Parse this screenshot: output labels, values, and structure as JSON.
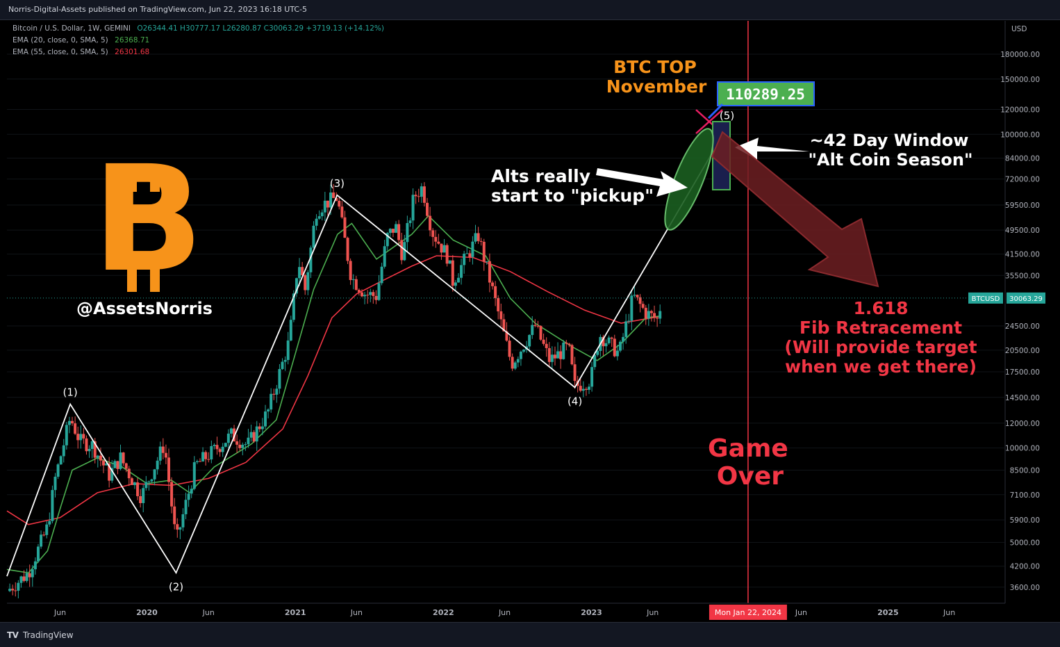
{
  "header": {
    "publisher": "Norris-Digital-Assets published on TradingView.com, Jun 22, 2023 16:18 UTC-5"
  },
  "legend": {
    "symbol": "Bitcoin / U.S. Dollar, 1W, GEMINI",
    "ohlc": "O26344.41  H30777.17  L26280.87  C30063.29  +3719.13 (+14.12%)",
    "ema20_label": "EMA (20, close, 0, SMA, 5)",
    "ema20_value": "26368.71",
    "ema55_label": "EMA (55, close, 0, SMA, 5)",
    "ema55_value": "26301.68"
  },
  "footer": {
    "logo": "TV",
    "brand": "TradingView"
  },
  "colors": {
    "up": "#26a69a",
    "down": "#ef5350",
    "ema20": "#4caf50",
    "ema55": "#f23645",
    "annotation_orange": "#f7931a",
    "annotation_red": "#f23645",
    "target_green": "#4caf50"
  },
  "annotations": {
    "handle": "@AssetsNorris",
    "btc_logo": "B",
    "top_line1": "BTC TOP",
    "top_line2": "November",
    "target_value": "110289.25",
    "window_line1": "~42 Day Window",
    "window_line2": "\"Alt Coin Season\"",
    "alts_line1": "Alts really",
    "alts_line2": "start to \"pickup\"",
    "fib_line1": "1.618",
    "fib_line2": "Fib Retracement",
    "fib_line3": "(Will provide target",
    "fib_line4": "when we get there)",
    "game_line1": "Game",
    "game_line2": "Over",
    "date_marker": "Mon Jan 22, 2024",
    "price_symbol": "BTCUSD",
    "price_value": "30063.29"
  },
  "chart_data": {
    "type": "line",
    "title": "Bitcoin / U.S. Dollar, 1W, GEMINI",
    "y_axis_unit": "USD",
    "y_scale": "log",
    "ylim": [
      3200,
      230000
    ],
    "x_range": [
      "2019-01-21",
      "2025-10-15"
    ],
    "y_ticks": [
      "180000.00",
      "150000.00",
      "120000.00",
      "100000.00",
      "84000.00",
      "72000.00",
      "59500.00",
      "49500.00",
      "41500.00",
      "35500.00",
      "24500.00",
      "20500.00",
      "17500.00",
      "14500.00",
      "12000.00",
      "10000.00",
      "8500.00",
      "7100.00",
      "5900.00",
      "5000.00",
      "4200.00",
      "3600.00"
    ],
    "x_ticks": [
      {
        "label": "Jun",
        "date": "2019-06-01"
      },
      {
        "label": "2020",
        "date": "2020-01-01"
      },
      {
        "label": "Jun",
        "date": "2020-06-01"
      },
      {
        "label": "2021",
        "date": "2021-01-01"
      },
      {
        "label": "Jun",
        "date": "2021-06-01"
      },
      {
        "label": "2022",
        "date": "2022-01-01"
      },
      {
        "label": "Jun",
        "date": "2022-06-01"
      },
      {
        "label": "2023",
        "date": "2023-01-01"
      },
      {
        "label": "Jun",
        "date": "2023-06-01"
      },
      {
        "label": "Jun",
        "date": "2024-06-01"
      },
      {
        "label": "2025",
        "date": "2025-01-01"
      },
      {
        "label": "Jun",
        "date": "2025-06-01"
      }
    ],
    "price_path": [
      [
        "2019-01-21",
        3500
      ],
      [
        "2019-03-15",
        4000
      ],
      [
        "2019-05-01",
        5600
      ],
      [
        "2019-05-20",
        8000
      ],
      [
        "2019-06-26",
        12500
      ],
      [
        "2019-07-20",
        10500
      ],
      [
        "2019-08-20",
        10200
      ],
      [
        "2019-09-30",
        8200
      ],
      [
        "2019-10-28",
        9300
      ],
      [
        "2019-12-18",
        7000
      ],
      [
        "2020-02-13",
        10300
      ],
      [
        "2020-03-13",
        5000
      ],
      [
        "2020-04-30",
        8800
      ],
      [
        "2020-06-10",
        9700
      ],
      [
        "2020-07-27",
        11000
      ],
      [
        "2020-09-05",
        10200
      ],
      [
        "2020-10-25",
        13000
      ],
      [
        "2020-12-17",
        22000
      ],
      [
        "2021-01-08",
        40000
      ],
      [
        "2021-01-25",
        32000
      ],
      [
        "2021-02-21",
        57000
      ],
      [
        "2021-03-13",
        60000
      ],
      [
        "2021-04-14",
        63000
      ],
      [
        "2021-05-19",
        35000
      ],
      [
        "2021-06-22",
        31000
      ],
      [
        "2021-07-20",
        30500
      ],
      [
        "2021-08-15",
        47000
      ],
      [
        "2021-09-05",
        51000
      ],
      [
        "2021-09-22",
        41000
      ],
      [
        "2021-10-20",
        63000
      ],
      [
        "2021-11-10",
        68000
      ],
      [
        "2021-12-04",
        49000
      ],
      [
        "2022-01-10",
        41000
      ],
      [
        "2022-01-24",
        34000
      ],
      [
        "2022-03-28",
        47500
      ],
      [
        "2022-05-10",
        29000
      ],
      [
        "2022-06-18",
        18500
      ],
      [
        "2022-08-15",
        24500
      ],
      [
        "2022-09-20",
        19000
      ],
      [
        "2022-11-05",
        21000
      ],
      [
        "2022-11-21",
        15700
      ],
      [
        "2022-12-30",
        16500
      ],
      [
        "2023-01-21",
        23000
      ],
      [
        "2023-03-10",
        20000
      ],
      [
        "2023-04-14",
        30500
      ],
      [
        "2023-05-15",
        27000
      ],
      [
        "2023-06-15",
        25500
      ],
      [
        "2023-06-22",
        30063
      ]
    ],
    "ema20_path": [
      [
        "2019-01-21",
        4100
      ],
      [
        "2019-03-15",
        4000
      ],
      [
        "2019-05-01",
        4700
      ],
      [
        "2019-06-01",
        6400
      ],
      [
        "2019-07-01",
        8500
      ],
      [
        "2019-09-01",
        9300
      ],
      [
        "2019-11-01",
        8700
      ],
      [
        "2020-01-01",
        7700
      ],
      [
        "2020-03-01",
        7900
      ],
      [
        "2020-04-15",
        7200
      ],
      [
        "2020-06-15",
        8700
      ],
      [
        "2020-09-15",
        10300
      ],
      [
        "2020-11-15",
        12300
      ],
      [
        "2021-01-01",
        20000
      ],
      [
        "2021-02-15",
        32000
      ],
      [
        "2021-04-15",
        48000
      ],
      [
        "2021-05-20",
        52000
      ],
      [
        "2021-07-20",
        40000
      ],
      [
        "2021-10-15",
        48000
      ],
      [
        "2021-11-25",
        55000
      ],
      [
        "2022-01-25",
        46000
      ],
      [
        "2022-04-15",
        41000
      ],
      [
        "2022-06-15",
        30000
      ],
      [
        "2022-08-15",
        25000
      ],
      [
        "2022-11-15",
        21000
      ],
      [
        "2023-01-15",
        19000
      ],
      [
        "2023-03-15",
        21500
      ],
      [
        "2023-05-15",
        26000
      ],
      [
        "2023-06-22",
        26368
      ]
    ],
    "ema55_path": [
      [
        "2019-01-21",
        6300
      ],
      [
        "2019-03-15",
        5700
      ],
      [
        "2019-06-01",
        6000
      ],
      [
        "2019-09-01",
        7200
      ],
      [
        "2019-12-01",
        7700
      ],
      [
        "2020-03-01",
        7600
      ],
      [
        "2020-06-01",
        8000
      ],
      [
        "2020-09-01",
        9000
      ],
      [
        "2020-12-01",
        11500
      ],
      [
        "2021-02-01",
        17000
      ],
      [
        "2021-04-01",
        26000
      ],
      [
        "2021-06-01",
        31000
      ],
      [
        "2021-08-01",
        34000
      ],
      [
        "2021-10-15",
        38000
      ],
      [
        "2021-12-15",
        41000
      ],
      [
        "2022-03-15",
        40500
      ],
      [
        "2022-06-15",
        36500
      ],
      [
        "2022-09-15",
        31500
      ],
      [
        "2022-12-15",
        27500
      ],
      [
        "2023-03-15",
        25000
      ],
      [
        "2023-06-22",
        26301
      ]
    ],
    "elliott_waves": [
      {
        "label": "(1)",
        "date": "2019-06-26",
        "price": 13800
      },
      {
        "label": "(2)",
        "date": "2020-03-13",
        "price": 4000
      },
      {
        "label": "(3)",
        "date": "2021-04-14",
        "price": 64000
      },
      {
        "label": "(4)",
        "date": "2022-11-21",
        "price": 15600
      },
      {
        "label": "(5)",
        "date": "2023-12-01",
        "price": 105000
      }
    ],
    "wave_start": {
      "date": "2019-01-21",
      "price": 3900
    }
  }
}
